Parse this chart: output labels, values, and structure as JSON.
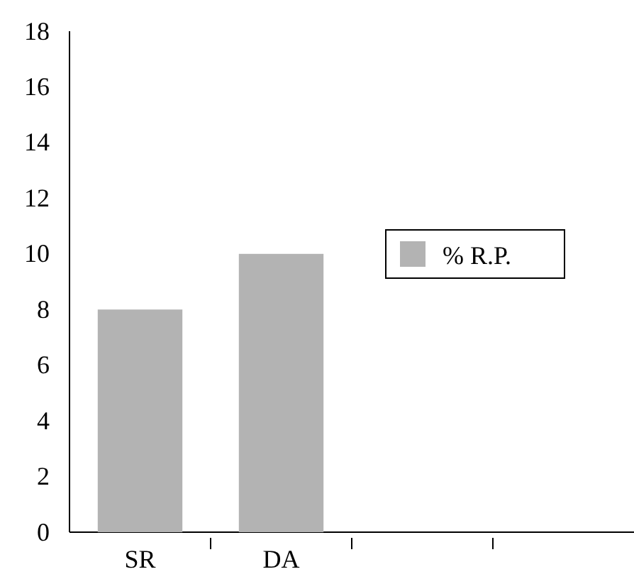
{
  "chart_data": {
    "type": "bar",
    "categories": [
      "SR",
      "DA",
      null,
      null
    ],
    "series": [
      {
        "name": "% R.P.",
        "color": "#b3b3b3",
        "values": [
          8,
          10,
          null,
          null
        ]
      }
    ],
    "ylim": [
      0,
      18
    ],
    "yticks": [
      0,
      2,
      4,
      6,
      8,
      10,
      12,
      14,
      16,
      18
    ],
    "grid": false,
    "legend": "right"
  }
}
